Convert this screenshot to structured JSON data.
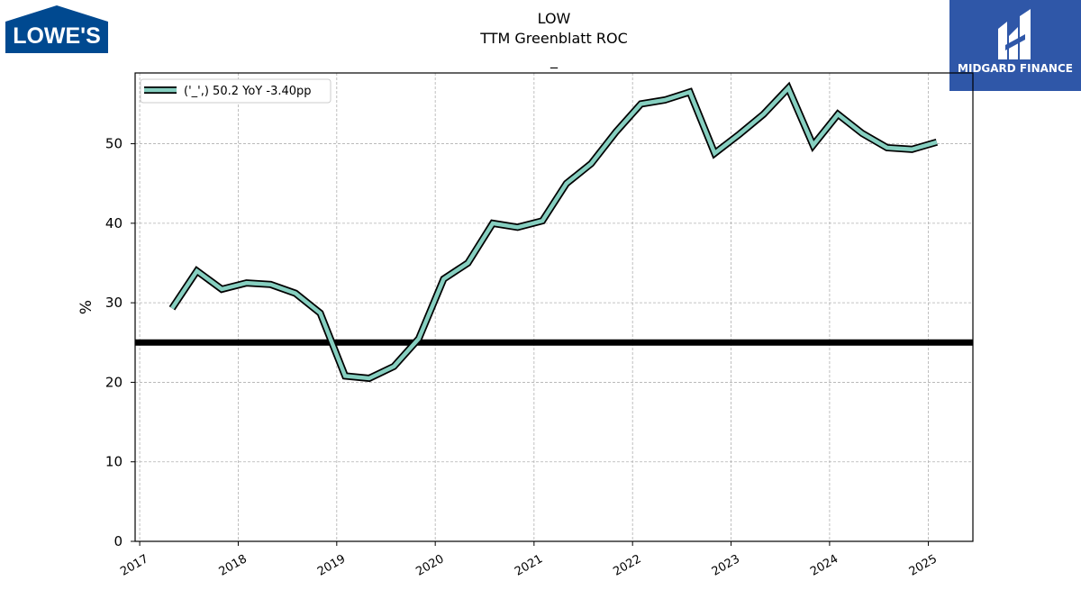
{
  "logos": {
    "left_text": "LOWE'S",
    "right_text": "MIDGARD FINANCE",
    "right_bg": "#2f57a8",
    "left_bg": "#004990"
  },
  "chart_data": {
    "type": "line",
    "title": "LOW",
    "subtitle": "TTM Greenblatt ROC",
    "subtitle2": "_",
    "xlabel": "",
    "ylabel": "%",
    "ylim": [
      0,
      58.9
    ],
    "yticks": [
      0,
      10,
      20,
      30,
      40,
      50
    ],
    "xticks": [
      "2017",
      "2018",
      "2019",
      "2020",
      "2021",
      "2022",
      "2023",
      "2024",
      "2025"
    ],
    "xlim": [
      "2016-12-15",
      "2025-06-15"
    ],
    "grid": true,
    "legend_placement": "top-left",
    "reference_line": {
      "y": 25,
      "color": "#000000"
    },
    "series": [
      {
        "name": "('_',) 50.2 YoY -3.40pp",
        "color": "#86cfc0",
        "edge_color": "#000000",
        "x": [
          "2017-05-01",
          "2017-08-01",
          "2017-11-01",
          "2018-02-01",
          "2018-05-01",
          "2018-08-01",
          "2018-11-01",
          "2019-02-01",
          "2019-05-01",
          "2019-08-01",
          "2019-11-01",
          "2020-02-01",
          "2020-05-01",
          "2020-08-01",
          "2020-11-01",
          "2021-02-01",
          "2021-05-01",
          "2021-08-01",
          "2021-11-01",
          "2022-02-01",
          "2022-05-01",
          "2022-08-01",
          "2022-11-01",
          "2023-02-01",
          "2023-05-01",
          "2023-08-01",
          "2023-11-01",
          "2024-02-01",
          "2024-05-01",
          "2024-08-01",
          "2024-11-01",
          "2025-02-01"
        ],
        "values": [
          29.3,
          34.0,
          31.7,
          32.5,
          32.3,
          31.2,
          28.7,
          20.8,
          20.5,
          22.0,
          25.5,
          33.0,
          35.0,
          40.0,
          39.5,
          40.3,
          45.0,
          47.5,
          51.5,
          55.0,
          55.5,
          56.5,
          48.8,
          51.2,
          53.7,
          57.0,
          49.8,
          53.7,
          51.3,
          49.5,
          49.3,
          50.2
        ]
      }
    ]
  }
}
